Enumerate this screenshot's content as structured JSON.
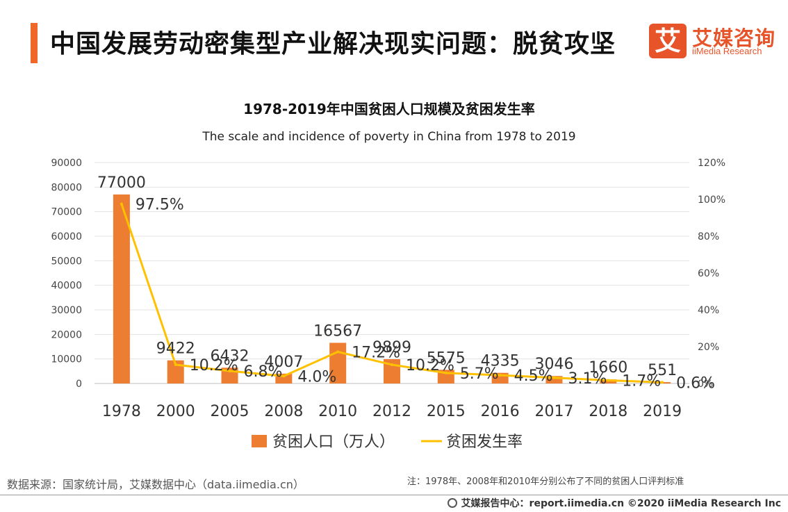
{
  "header": {
    "title": "中国发展劳动密集型产业解决现实问题：脱贫攻坚",
    "logo_mark": "艾",
    "logo_cn": "艾媒咨询",
    "logo_en": "iiMedia Research"
  },
  "chart_data": {
    "type": "bar",
    "title": "1978-2019年中国贫困人口规模及贫困发生率",
    "subtitle": "The scale and incidence of poverty in China from 1978 to 2019",
    "categories": [
      "1978",
      "2000",
      "2005",
      "2008",
      "2010",
      "2012",
      "2015",
      "2016",
      "2017",
      "2018",
      "2019"
    ],
    "series": [
      {
        "name": "贫困人口（万人）",
        "type": "bar",
        "axis": "left",
        "color": "#ed7d31",
        "values": [
          77000,
          9422,
          6432,
          4007,
          16567,
          9899,
          5575,
          4335,
          3046,
          1660,
          551
        ],
        "labels": [
          "77000",
          "9422",
          "6432",
          "4007",
          "16567",
          "9899",
          "5575",
          "4335",
          "3046",
          "1660",
          "551"
        ]
      },
      {
        "name": "贫困发生率",
        "type": "line",
        "axis": "right",
        "color": "#ffc000",
        "values": [
          97.5,
          10.2,
          6.8,
          4.0,
          17.2,
          10.2,
          5.7,
          4.5,
          3.1,
          1.7,
          0.6
        ],
        "labels": [
          "97.5%",
          "10.2%",
          "6.8%",
          "4.0%",
          "17.2%",
          "10.2%",
          "5.7%",
          "4.5%",
          "3.1%",
          "1.7%",
          "0.6%"
        ]
      }
    ],
    "y_left": {
      "min": 0,
      "max": 90000,
      "ticks": [
        "0",
        "10000",
        "20000",
        "30000",
        "40000",
        "50000",
        "60000",
        "70000",
        "80000",
        "90000"
      ]
    },
    "y_right": {
      "min": 0,
      "max": 120,
      "ticks": [
        "0%",
        "20%",
        "40%",
        "60%",
        "80%",
        "100%",
        "120%"
      ]
    },
    "grid": true,
    "legend": "bottom"
  },
  "footer": {
    "source": "数据来源：国家统计局，艾媒数据中心（data.iimedia.cn）",
    "note": "注：1978年、2008年和2010年分别公布了不同的贫困人口评判标准",
    "copyright": "艾媒报告中心：report.iimedia.cn  ©2020  iiMedia Research  Inc"
  }
}
